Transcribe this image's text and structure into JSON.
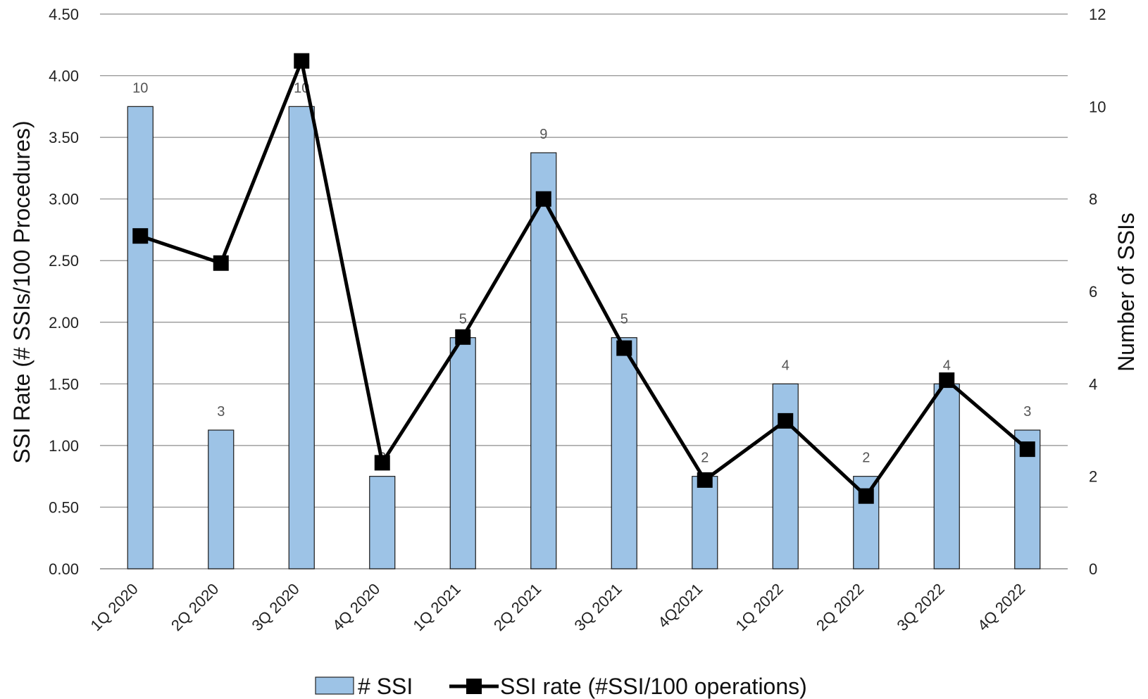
{
  "chart_data": {
    "type": "bar",
    "categories": [
      "1Q 2020",
      "2Q 2020",
      "3Q 2020",
      "4Q 2020",
      "1Q 2021",
      "2Q 2021",
      "3Q 2021",
      "4Q2021",
      "1Q 2022",
      "2Q 2022",
      "3Q 2022",
      "4Q 2022"
    ],
    "series": [
      {
        "name": "# SSI",
        "type": "bar",
        "axis": "right",
        "values": [
          10,
          3,
          10,
          2,
          5,
          9,
          5,
          2,
          4,
          2,
          4,
          3
        ],
        "color": "#9dc3e6"
      },
      {
        "name": "SSI rate (#SSI/100 operations)",
        "type": "line",
        "axis": "left",
        "values": [
          2.7,
          2.48,
          4.12,
          0.86,
          1.88,
          3.0,
          1.79,
          0.72,
          1.2,
          0.59,
          1.53,
          0.97
        ],
        "color": "#000000"
      }
    ],
    "ylabel": "SSI Rate (# SSIs/100 Procedures)",
    "y2label": "Number of SSIs",
    "ylim": [
      0,
      4.5
    ],
    "y2lim": [
      0,
      12
    ],
    "yticks": [
      "0.00",
      "0.50",
      "1.00",
      "1.50",
      "2.00",
      "2.50",
      "3.00",
      "3.50",
      "4.00",
      "4.50"
    ],
    "y2ticks": [
      "0",
      "2",
      "4",
      "6",
      "8",
      "10",
      "12"
    ],
    "grid": true,
    "legend": "bottom"
  }
}
